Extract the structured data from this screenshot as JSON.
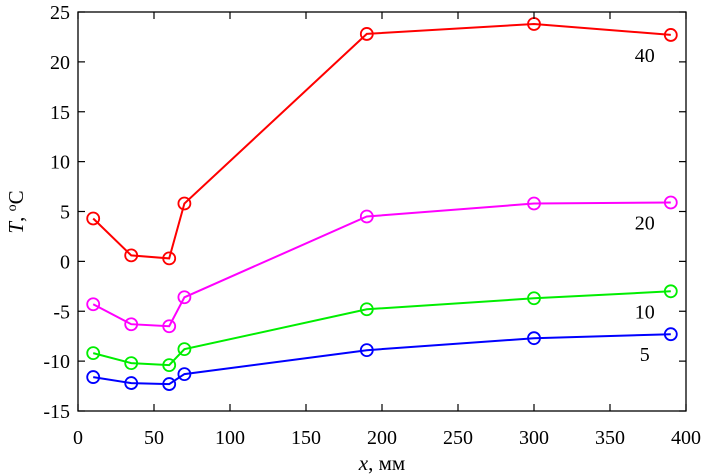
{
  "chart_data": {
    "type": "line",
    "xlabel": {
      "var": "x",
      "unit": ", мм"
    },
    "ylabel": {
      "var": "T",
      "sep": ", ",
      "deg": "o",
      "unit": "C"
    },
    "xlim": [
      0,
      400
    ],
    "ylim": [
      -15,
      25
    ],
    "xticks": [
      0,
      50,
      100,
      150,
      200,
      250,
      300,
      350,
      400
    ],
    "yticks": [
      -15,
      -10,
      -5,
      0,
      5,
      10,
      15,
      20,
      25
    ],
    "grid": false,
    "x": [
      10,
      35,
      60,
      70,
      190,
      300,
      390
    ],
    "series": [
      {
        "name": "40",
        "color": "#ff0000",
        "values": [
          4.3,
          0.6,
          0.3,
          5.8,
          22.8,
          23.8,
          22.7
        ]
      },
      {
        "name": "20",
        "color": "#ff00ff",
        "values": [
          -4.3,
          -6.3,
          -6.5,
          -3.6,
          4.5,
          5.8,
          5.9
        ]
      },
      {
        "name": "10",
        "color": "#00ee00",
        "values": [
          -9.2,
          -10.2,
          -10.4,
          -8.8,
          -4.8,
          -3.7,
          -3.0
        ]
      },
      {
        "name": "5",
        "color": "#0000ff",
        "values": [
          -11.6,
          -12.2,
          -12.3,
          -11.3,
          -8.9,
          -7.7,
          -7.3
        ]
      }
    ]
  }
}
